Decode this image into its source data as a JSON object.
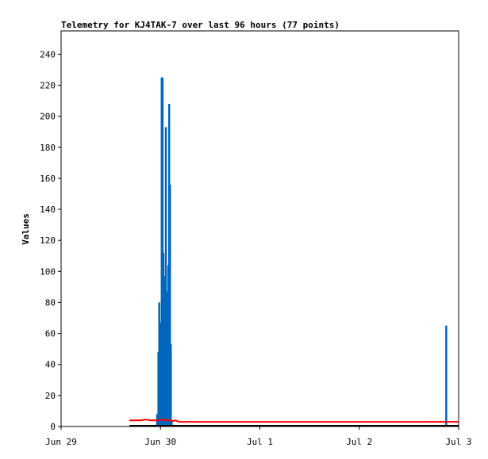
{
  "chart_data": {
    "type": "line",
    "title": "Telemetry for KJ4TAK-7 over last 96 hours (77 points)",
    "ylabel": "Values",
    "xlabel": "",
    "x_ticks": [
      "Jun 29",
      "Jun 30",
      "Jul 1",
      "Jul 2",
      "Jul 3"
    ],
    "xlim": [
      0,
      96
    ],
    "y_ticks": [
      0,
      20,
      40,
      60,
      80,
      100,
      120,
      140,
      160,
      180,
      200,
      220,
      240
    ],
    "ylim": [
      0,
      255
    ],
    "grid": false,
    "legend": "none",
    "series": [
      {
        "color": "#0066bb",
        "style": "spikes",
        "x": [
          23.2,
          23.5,
          23.7,
          23.9,
          24.1,
          24.3,
          24.5,
          24.7,
          24.9,
          25.1,
          25.3,
          25.5,
          25.7,
          25.9,
          26.1,
          26.3,
          26.5,
          26.7,
          27.0,
          93.0
        ],
        "y": [
          8,
          48,
          80,
          40,
          67,
          225,
          225,
          112,
          14,
          97,
          193,
          13,
          87,
          104,
          208,
          156,
          53,
          4,
          1,
          65
        ]
      },
      {
        "color": "#ff0000",
        "style": "line",
        "x": [
          16.5,
          19.0,
          20.5,
          21.5,
          22.5,
          23.5,
          24.5,
          25.5,
          26.5,
          27.0,
          27.6,
          28.5,
          96.0
        ],
        "y": [
          4,
          4,
          4.5,
          4,
          4,
          4,
          4.5,
          4,
          4,
          3.5,
          4,
          3,
          3
        ]
      },
      {
        "color": "#000000",
        "style": "line",
        "x": [
          16.5,
          96.0
        ],
        "y": [
          0.5,
          0.5
        ]
      }
    ]
  }
}
